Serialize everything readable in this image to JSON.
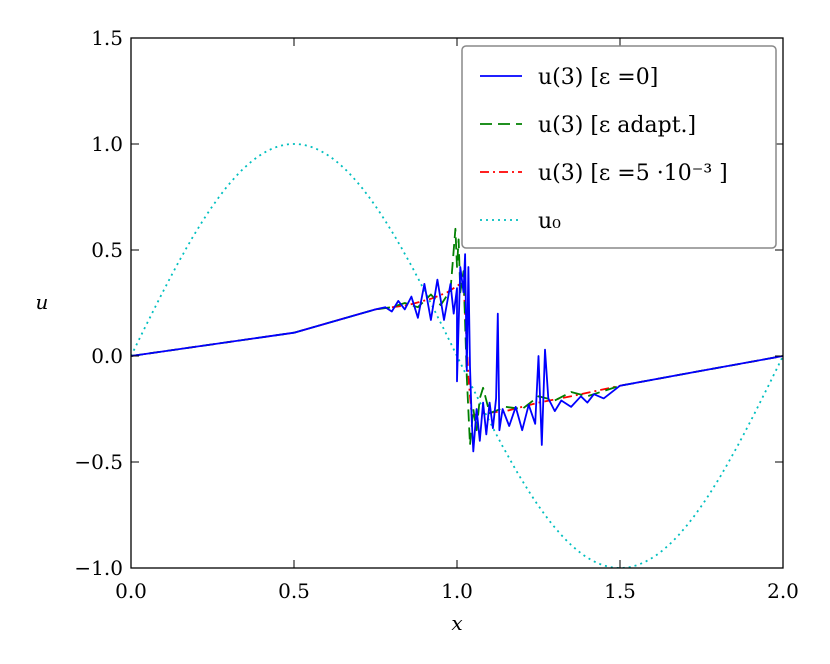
{
  "chart_data": {
    "type": "line",
    "xlabel": "x",
    "ylabel": "u",
    "xlim": [
      0.0,
      2.0
    ],
    "ylim": [
      -1.0,
      1.5
    ],
    "xticks": [
      "0.0",
      "0.5",
      "1.0",
      "1.5",
      "2.0"
    ],
    "yticks": [
      "−1.0",
      "−0.5",
      "0.0",
      "0.5",
      "1.0",
      "1.5"
    ],
    "grid": false,
    "legend_position": "top-right",
    "series": [
      {
        "name": "u(3) [ε =0]",
        "style": "solid",
        "color": "#0000ff",
        "points": [
          [
            0.0,
            0.0
          ],
          [
            0.5,
            0.11
          ],
          [
            0.75,
            0.22
          ],
          [
            0.78,
            0.23
          ],
          [
            0.8,
            0.21
          ],
          [
            0.82,
            0.26
          ],
          [
            0.84,
            0.22
          ],
          [
            0.86,
            0.28
          ],
          [
            0.88,
            0.18
          ],
          [
            0.9,
            0.34
          ],
          [
            0.92,
            0.17
          ],
          [
            0.94,
            0.36
          ],
          [
            0.96,
            0.17
          ],
          [
            0.98,
            0.34
          ],
          [
            0.99,
            0.2
          ],
          [
            1.0,
            0.32
          ],
          [
            1.0,
            -0.12
          ],
          [
            1.01,
            0.42
          ],
          [
            1.02,
            0.3
          ],
          [
            1.025,
            0.48
          ],
          [
            1.03,
            -0.07
          ],
          [
            1.035,
            0.42
          ],
          [
            1.04,
            -0.05
          ],
          [
            1.045,
            -0.3
          ],
          [
            1.05,
            -0.45
          ],
          [
            1.06,
            -0.25
          ],
          [
            1.07,
            -0.4
          ],
          [
            1.08,
            -0.22
          ],
          [
            1.09,
            -0.37
          ],
          [
            1.1,
            -0.22
          ],
          [
            1.11,
            -0.34
          ],
          [
            1.12,
            -0.2
          ],
          [
            1.125,
            0.2
          ],
          [
            1.13,
            -0.35
          ],
          [
            1.14,
            -0.25
          ],
          [
            1.16,
            -0.33
          ],
          [
            1.18,
            -0.24
          ],
          [
            1.2,
            -0.35
          ],
          [
            1.22,
            -0.23
          ],
          [
            1.24,
            -0.32
          ],
          [
            1.25,
            0.0
          ],
          [
            1.26,
            -0.42
          ],
          [
            1.27,
            0.03
          ],
          [
            1.28,
            -0.2
          ],
          [
            1.3,
            -0.26
          ],
          [
            1.32,
            -0.21
          ],
          [
            1.35,
            -0.24
          ],
          [
            1.38,
            -0.19
          ],
          [
            1.4,
            -0.22
          ],
          [
            1.42,
            -0.18
          ],
          [
            1.45,
            -0.2
          ],
          [
            1.5,
            -0.14
          ],
          [
            1.75,
            -0.07
          ],
          [
            2.0,
            0.0
          ]
        ]
      },
      {
        "name": "u(3) [ε adapt.]",
        "style": "dashed",
        "color": "#008000",
        "points": [
          [
            0.0,
            0.0
          ],
          [
            0.5,
            0.11
          ],
          [
            0.75,
            0.22
          ],
          [
            0.8,
            0.23
          ],
          [
            0.84,
            0.25
          ],
          [
            0.88,
            0.23
          ],
          [
            0.92,
            0.29
          ],
          [
            0.95,
            0.24
          ],
          [
            0.98,
            0.31
          ],
          [
            0.995,
            0.6
          ],
          [
            1.0,
            0.42
          ],
          [
            1.005,
            0.55
          ],
          [
            1.01,
            0.3
          ],
          [
            1.02,
            0.4
          ],
          [
            1.03,
            -0.1
          ],
          [
            1.04,
            -0.42
          ],
          [
            1.05,
            -0.25
          ],
          [
            1.06,
            -0.35
          ],
          [
            1.07,
            -0.2
          ],
          [
            1.08,
            -0.15
          ],
          [
            1.1,
            -0.27
          ],
          [
            1.15,
            -0.24
          ],
          [
            1.2,
            -0.25
          ],
          [
            1.25,
            -0.19
          ],
          [
            1.3,
            -0.21
          ],
          [
            1.35,
            -0.17
          ],
          [
            1.4,
            -0.19
          ],
          [
            1.5,
            -0.14
          ],
          [
            1.75,
            -0.07
          ],
          [
            2.0,
            0.0
          ]
        ]
      },
      {
        "name": "u(3) [ε =5 ·10⁻³ ]",
        "style": "dashdot",
        "color": "#ff0000",
        "points": [
          [
            0.0,
            0.0
          ],
          [
            0.5,
            0.11
          ],
          [
            0.75,
            0.22
          ],
          [
            0.85,
            0.24
          ],
          [
            0.92,
            0.27
          ],
          [
            0.97,
            0.3
          ],
          [
            1.0,
            0.33
          ],
          [
            1.02,
            0.35
          ],
          [
            1.035,
            -0.1
          ],
          [
            1.045,
            -0.28
          ],
          [
            1.08,
            -0.27
          ],
          [
            1.15,
            -0.26
          ],
          [
            1.25,
            -0.22
          ],
          [
            1.35,
            -0.19
          ],
          [
            1.5,
            -0.14
          ],
          [
            1.75,
            -0.07
          ],
          [
            2.0,
            0.0
          ]
        ]
      },
      {
        "name": "u₀",
        "style": "dotted",
        "color": "#00bfbf",
        "function": "sin(pi*x)"
      }
    ]
  }
}
